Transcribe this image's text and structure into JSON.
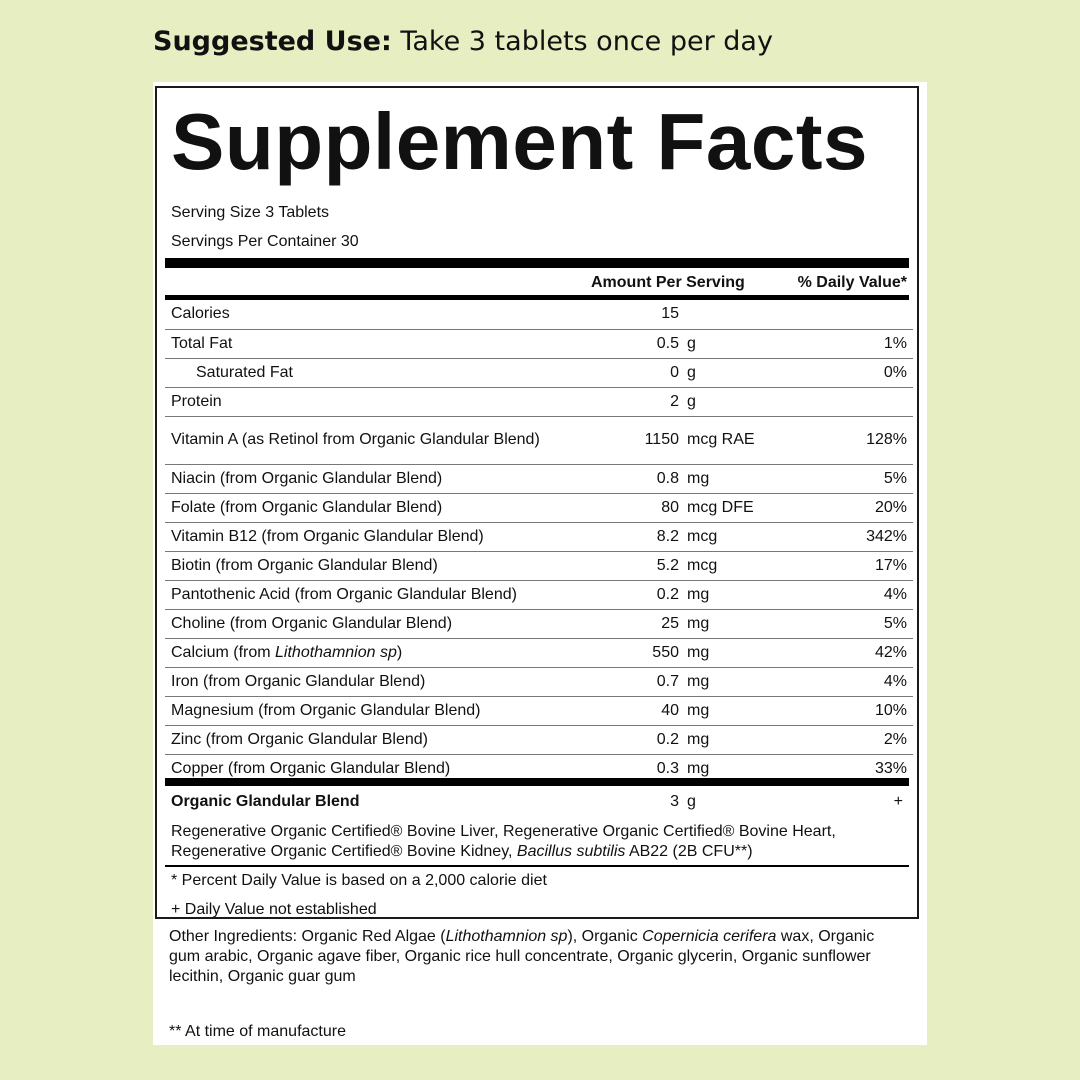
{
  "suggested_use": {
    "label": "Suggested Use:",
    "text": "Take 3 tablets once per day"
  },
  "label": {
    "title": "Supplement Facts",
    "serving_size": "Serving Size 3 Tablets",
    "servings_per_container": "Servings Per Container 30",
    "header_amount": "Amount Per Serving",
    "header_dv": "% Daily Value*",
    "rows": [
      {
        "name": "Calories",
        "amount": "15",
        "unit": "",
        "dv": ""
      },
      {
        "name": "Total Fat",
        "amount": "0.5",
        "unit": "g",
        "dv": "1%"
      },
      {
        "name": "Saturated Fat",
        "amount": "0",
        "unit": "g",
        "dv": "0%"
      },
      {
        "name": "Protein",
        "amount": "2",
        "unit": "g",
        "dv": ""
      },
      {
        "name": "Vitamin A (as Retinol from Organic Glandular Blend)",
        "amount": "1150",
        "unit": "mcg RAE",
        "dv": "128%"
      },
      {
        "name": "Niacin (from Organic Glandular Blend)",
        "amount": "0.8",
        "unit": "mg",
        "dv": "5%"
      },
      {
        "name": "Folate (from Organic Glandular Blend)",
        "amount": "80",
        "unit": "mcg DFE",
        "dv": "20%"
      },
      {
        "name": "Vitamin B12 (from Organic Glandular Blend)",
        "amount": "8.2",
        "unit": "mcg",
        "dv": "342%"
      },
      {
        "name": "Biotin (from Organic Glandular Blend)",
        "amount": "5.2",
        "unit": "mcg",
        "dv": "17%"
      },
      {
        "name": "Pantothenic Acid (from Organic Glandular Blend)",
        "amount": "0.2",
        "unit": "mg",
        "dv": "4%"
      },
      {
        "name": "Choline (from Organic Glandular Blend)",
        "amount": "25",
        "unit": "mg",
        "dv": "5%"
      },
      {
        "name_prefix": "Calcium (from ",
        "name_italic": "Lithothamnion sp",
        "name_suffix": ")",
        "amount": "550",
        "unit": "mg",
        "dv": "42%"
      },
      {
        "name": "Iron (from Organic Glandular Blend)",
        "amount": "0.7",
        "unit": "mg",
        "dv": "4%"
      },
      {
        "name": "Magnesium (from Organic Glandular Blend)",
        "amount": "40",
        "unit": "mg",
        "dv": "10%"
      },
      {
        "name": "Zinc (from Organic Glandular Blend)",
        "amount": "0.2",
        "unit": "mg",
        "dv": "2%"
      },
      {
        "name": "Copper (from Organic Glandular Blend)",
        "amount": "0.3",
        "unit": "mg",
        "dv": "33%"
      }
    ],
    "blend": {
      "name": "Organic Glandular Blend",
      "amount": "3",
      "unit": "g",
      "dv": "+",
      "desc_main": "Regenerative Organic Certified® Bovine Liver, Regenerative Organic Certified® Bovine Heart, Regenerative Organic Certified® Bovine Kidney, ",
      "desc_italic": "Bacillus subtilis",
      "desc_end": " AB22 (2B CFU**)"
    },
    "footnote_1": "* Percent Daily Value is based on a 2,000 calorie diet",
    "footnote_2": "+ Daily Value not established"
  },
  "other_ingredients": {
    "p1": "Other Ingredients: Organic Red Algae (",
    "i1": "Lithothamnion sp",
    "p2": "), Organic ",
    "i2": "Copernicia cerifera",
    "p3": " wax, Organic gum arabic, Organic agave fiber, Organic rice hull concentrate, Organic glycerin, Organic sunflower lecithin, Organic guar gum"
  },
  "manufacture_note": "** At time of manufacture"
}
